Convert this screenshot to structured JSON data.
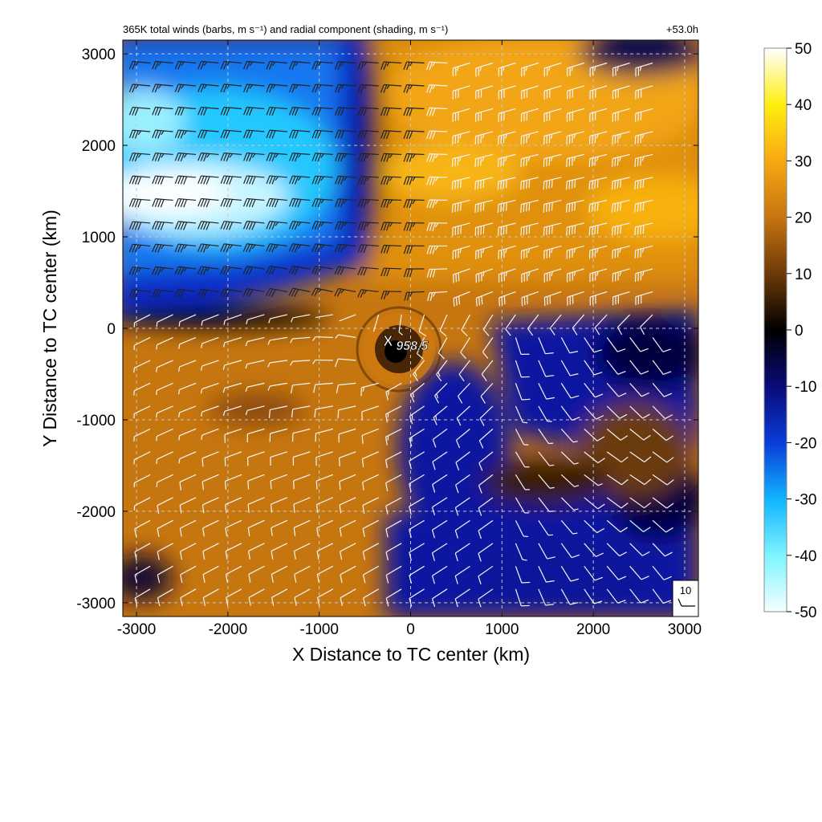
{
  "chart_data": {
    "type": "heatmap",
    "title_left": "365K total winds (barbs, m s⁻¹) and radial component (shading, m s⁻¹)",
    "title_right": "+53.0h",
    "xlabel": "X Distance to TC center (km)",
    "ylabel": "Y Distance to TC center (km)",
    "xlim": [
      -3150,
      3150
    ],
    "ylim": [
      -3150,
      3150
    ],
    "xticks": [
      "-3000",
      "-2000",
      "-1000",
      "0",
      "1000",
      "2000",
      "3000"
    ],
    "yticks": [
      "-3000",
      "-2000",
      "-1000",
      "0",
      "1000",
      "2000",
      "3000"
    ],
    "grid": true,
    "colorbar": {
      "min": -50,
      "max": 50,
      "ticks": [
        "-50",
        "-40",
        "-30",
        "-20",
        "-10",
        "0",
        "10",
        "20",
        "30",
        "40",
        "50"
      ],
      "colors": [
        "#f4ffff",
        "#7ef4ff",
        "#10b4ff",
        "#0a3cd8",
        "#0a0a78",
        "#000000",
        "#6e3a08",
        "#c67510",
        "#f8a812",
        "#ffee10",
        "#ffffff"
      ]
    },
    "center_marker": {
      "x": -230,
      "y": -220,
      "label": "958.5"
    },
    "reference_barb": {
      "label": "10",
      "speed": 10
    },
    "barb_grid": {
      "x_start": -2850,
      "x_end": 2850,
      "y_start": 2900,
      "y_end": -2850,
      "spacing": 250
    }
  }
}
